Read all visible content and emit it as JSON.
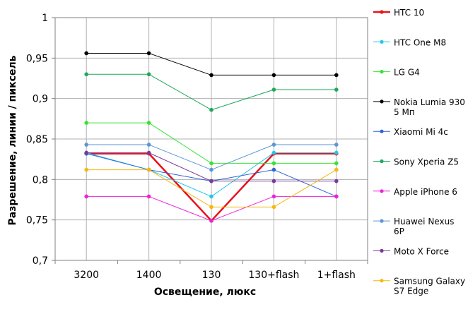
{
  "chart_data": {
    "type": "line",
    "xlabel": "Освещение,  люкс",
    "ylabel": "Разрешение,  линии / пиксель",
    "categories": [
      "3200",
      "1400",
      "130",
      "130+flash",
      "1+flash"
    ],
    "ylim": [
      0.7,
      1.0
    ],
    "yticks": [
      0.7,
      0.75,
      0.8,
      0.85,
      0.9,
      0.95,
      1.0
    ],
    "ytick_labels": [
      "0,7",
      "0,75",
      "0,8",
      "0,85",
      "0,9",
      "0,95",
      "1"
    ],
    "grid": "vertical and horizontal",
    "legend": "right",
    "series": [
      {
        "name": [
          "HTC 10"
        ],
        "color": "#e8121c",
        "thick": true,
        "values": [
          0.832,
          0.832,
          0.749,
          0.832,
          0.832
        ]
      },
      {
        "name": [
          "HTC One M8"
        ],
        "color": "#22c7e8",
        "values": [
          0.833,
          0.812,
          0.779,
          0.833,
          0.833
        ]
      },
      {
        "name": [
          "LG G4"
        ],
        "color": "#33e533",
        "values": [
          0.87,
          0.87,
          0.82,
          0.82,
          0.82
        ]
      },
      {
        "name": [
          "Nokia Lumia 930",
          "5 Мп"
        ],
        "color": "#000000",
        "values": [
          0.956,
          0.956,
          0.929,
          0.929,
          0.929
        ]
      },
      {
        "name": [
          "Xiaomi Mi 4c"
        ],
        "color": "#2e63d6",
        "values": [
          0.832,
          0.812,
          0.798,
          0.812,
          0.779
        ]
      },
      {
        "name": [
          "Sony Xperia Z5"
        ],
        "color": "#1ea85a",
        "values": [
          0.93,
          0.93,
          0.886,
          0.911,
          0.911
        ]
      },
      {
        "name": [
          "Apple iPhone 6"
        ],
        "color": "#ee22d8",
        "values": [
          0.779,
          0.779,
          0.749,
          0.779,
          0.779
        ]
      },
      {
        "name": [
          "Huawei Nexus",
          "6P"
        ],
        "color": "#5b96d6",
        "values": [
          0.843,
          0.843,
          0.812,
          0.843,
          0.843
        ]
      },
      {
        "name": [
          "Moto X Force"
        ],
        "color": "#7a3a9a",
        "values": [
          0.833,
          0.833,
          0.798,
          0.798,
          0.798
        ]
      },
      {
        "name": [
          "Samsung Galaxy",
          "S7 Edge"
        ],
        "color": "#f5b80c",
        "values": [
          0.812,
          0.812,
          0.766,
          0.766,
          0.812
        ]
      }
    ]
  }
}
